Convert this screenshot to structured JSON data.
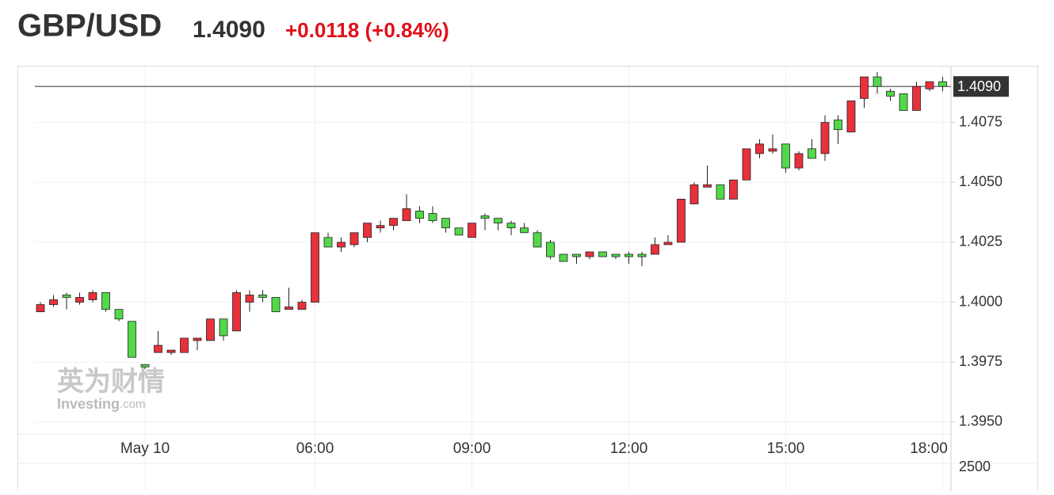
{
  "header": {
    "symbol": "GBP/USD",
    "price": "1.4090",
    "change": "+0.0118 (+0.84%)"
  },
  "watermark": {
    "cn": "英为财情",
    "brand": "Investing",
    "domain": ".com"
  },
  "chart_data": {
    "type": "candlestick",
    "categories": [
      null,
      null,
      null,
      null,
      null,
      null,
      null,
      null,
      "May 10",
      null,
      null,
      null,
      null,
      null,
      null,
      null,
      null,
      null,
      null,
      null,
      null,
      "06:00",
      null,
      null,
      null,
      null,
      null,
      null,
      null,
      null,
      null,
      null,
      null,
      "09:00",
      null,
      null,
      null,
      null,
      null,
      null,
      null,
      null,
      null,
      null,
      null,
      "12:00",
      null,
      null,
      null,
      null,
      null,
      null,
      null,
      null,
      null,
      null,
      null,
      "15:00",
      null,
      null,
      null,
      null,
      null,
      null,
      null,
      null,
      null,
      null,
      null,
      "18:00"
    ],
    "open": [
      1.3996,
      1.3999,
      1.4003,
      1.4,
      1.4001,
      1.4004,
      1.3997,
      1.3992,
      1.3974,
      1.3979,
      1.3979,
      1.3979,
      1.3984,
      1.3984,
      1.3993,
      1.3988,
      1.4,
      1.4003,
      1.4002,
      1.3997,
      1.3997,
      1.4,
      1.4027,
      1.4023,
      1.4024,
      1.4027,
      1.4031,
      1.4032,
      1.4034,
      1.4038,
      1.4037,
      1.4035,
      1.4031,
      1.4027,
      1.4036,
      1.4035,
      1.4033,
      1.4031,
      1.4029,
      1.4025,
      1.402,
      1.402,
      1.4019,
      1.4021,
      1.402,
      1.402,
      1.402,
      1.402,
      1.4024,
      1.4025,
      1.4041,
      1.4048,
      1.4049,
      1.4043,
      1.4051,
      1.4062,
      1.4063,
      1.4066,
      1.4056,
      1.4064,
      1.4062,
      1.4076,
      1.4071,
      1.4085,
      1.4094,
      1.4088,
      1.4087,
      1.408,
      1.4089,
      1.4092
    ],
    "high": [
      1.4,
      1.4003,
      1.4004,
      1.4004,
      1.4005,
      1.4004,
      1.3997,
      1.3992,
      1.3974,
      1.3988,
      1.398,
      1.3985,
      1.3985,
      1.3993,
      1.3993,
      1.4005,
      1.4005,
      1.4005,
      1.4002,
      1.4006,
      1.4001,
      1.4029,
      1.4029,
      1.4027,
      1.4029,
      1.4033,
      1.4034,
      1.4035,
      1.4045,
      1.404,
      1.404,
      1.4035,
      1.4031,
      1.4033,
      1.4037,
      1.4035,
      1.4034,
      1.4033,
      1.403,
      1.4026,
      1.402,
      1.402,
      1.4021,
      1.4021,
      1.402,
      1.4021,
      1.4021,
      1.4027,
      1.4028,
      1.4043,
      1.405,
      1.4057,
      1.4049,
      1.4051,
      1.4064,
      1.4068,
      1.407,
      1.4066,
      1.4063,
      1.4068,
      1.4078,
      1.4078,
      1.4084,
      1.4094,
      1.4096,
      1.4089,
      1.4087,
      1.4092,
      1.4092,
      1.4094
    ],
    "low": [
      1.3996,
      1.3998,
      1.3997,
      1.3999,
      1.4,
      1.3996,
      1.3992,
      1.3977,
      1.3972,
      1.3979,
      1.3978,
      1.3979,
      1.398,
      1.3984,
      1.3984,
      1.3988,
      1.3996,
      1.4,
      1.3996,
      1.3997,
      1.3997,
      1.4,
      1.4023,
      1.4021,
      1.4023,
      1.4025,
      1.4029,
      1.403,
      1.4034,
      1.4033,
      1.4033,
      1.4029,
      1.4028,
      1.4027,
      1.403,
      1.403,
      1.4028,
      1.4029,
      1.4023,
      1.4018,
      1.4017,
      1.4016,
      1.4018,
      1.4019,
      1.4018,
      1.4016,
      1.4015,
      1.402,
      1.4024,
      1.4025,
      1.4041,
      1.4048,
      1.4043,
      1.4043,
      1.4051,
      1.406,
      1.4062,
      1.4054,
      1.4055,
      1.406,
      1.4059,
      1.4066,
      1.4071,
      1.4081,
      1.4087,
      1.4084,
      1.408,
      1.408,
      1.4088,
      1.4088
    ],
    "close": [
      1.3999,
      1.4001,
      1.4002,
      1.4002,
      1.4004,
      1.3997,
      1.3993,
      1.3977,
      1.3973,
      1.3982,
      1.398,
      1.3985,
      1.3985,
      1.3993,
      1.3986,
      1.4004,
      1.4003,
      1.4002,
      1.3996,
      1.3998,
      1.4,
      1.4029,
      1.4023,
      1.4025,
      1.4029,
      1.4033,
      1.4032,
      1.4035,
      1.4039,
      1.4035,
      1.4034,
      1.4031,
      1.4028,
      1.4033,
      1.4035,
      1.4033,
      1.4031,
      1.4029,
      1.4023,
      1.4019,
      1.4017,
      1.4019,
      1.4021,
      1.4019,
      1.4019,
      1.4019,
      1.4019,
      1.4024,
      1.4025,
      1.4043,
      1.4049,
      1.4049,
      1.4043,
      1.4051,
      1.4064,
      1.4066,
      1.4064,
      1.4056,
      1.4062,
      1.406,
      1.4075,
      1.4072,
      1.4084,
      1.4094,
      1.409,
      1.4086,
      1.408,
      1.409,
      1.4092,
      1.409
    ],
    "up_color": "#e8313a",
    "down_color": "#52d84a",
    "ylim": [
      1.3945,
      1.4097
    ],
    "yticks": [
      {
        "value": 1.395,
        "label": "1.3950"
      },
      1.3975,
      {
        "value": 1.4,
        "label": "1.4000"
      },
      1.4025,
      {
        "value": 1.405,
        "label": "1.4050"
      },
      1.4075
    ],
    "last_price": {
      "value": 1.409,
      "label": "1.4090"
    },
    "volume_ticks": [
      2500
    ],
    "grid": true
  }
}
